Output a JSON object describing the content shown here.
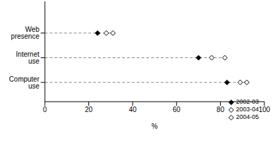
{
  "chart_data": {
    "type": "scatter",
    "orientation": "horizontal",
    "categories": [
      "Computer use",
      "Internet use",
      "Web presence"
    ],
    "series": [
      {
        "name": "2002-03",
        "color": "#000000",
        "marker": "diamond",
        "values": [
          83,
          70,
          24
        ]
      },
      {
        "name": "2003-04",
        "color": "#000000",
        "marker": "diamond_open",
        "values": [
          89,
          76,
          28
        ]
      },
      {
        "name": "2004-05",
        "color": "#000000",
        "marker": "diamond_open",
        "values": [
          92,
          82,
          31
        ]
      }
    ],
    "xlabel": "%",
    "xlim": [
      0,
      100
    ],
    "xticks": [
      0,
      20,
      40,
      60,
      80,
      100
    ],
    "legend": "lower right",
    "grid": false
  }
}
